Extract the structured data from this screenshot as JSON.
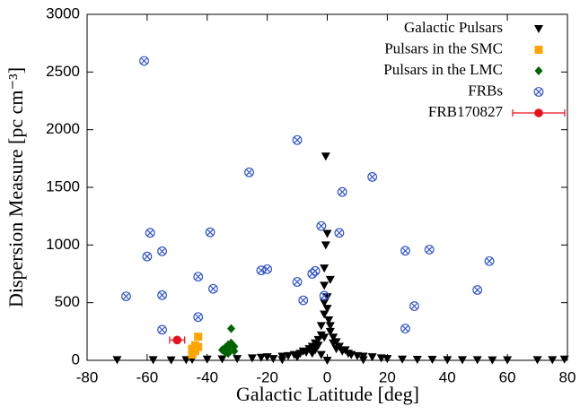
{
  "chart_data": {
    "type": "scatter",
    "x_label": "Galactic Latitude [deg]",
    "y_label": "Dispersion Measure [pc cm⁻³]",
    "xlim": [
      -80,
      80
    ],
    "ylim": [
      0,
      3000
    ],
    "xticks": [
      -80,
      -60,
      -40,
      -20,
      0,
      20,
      40,
      60,
      80
    ],
    "yticks": [
      0,
      500,
      1000,
      1500,
      2000,
      2500,
      3000
    ],
    "legend": "upper right",
    "series": [
      {
        "name": "Galactic Pulsars",
        "color": "#000000",
        "marker": "triangle-down",
        "x": [
          -70,
          -58,
          -52,
          -47,
          -45,
          -40,
          -35,
          -30,
          -25,
          -22,
          -20,
          -18,
          -15,
          -13,
          -11,
          -10,
          -9,
          -8,
          -7,
          -6,
          -5,
          -5,
          -4,
          -4,
          -3,
          -3,
          -2,
          -2,
          -1,
          -1,
          -1,
          -1,
          -0.5,
          0,
          -0.5,
          0,
          0,
          0.5,
          1,
          1,
          2,
          2,
          3,
          3,
          4,
          5,
          6,
          7,
          8,
          10,
          12,
          15,
          18,
          20,
          25,
          30,
          35,
          40,
          45,
          50,
          55,
          60,
          70,
          75,
          79,
          -1,
          1,
          -2,
          0,
          -15,
          12
        ],
        "y": [
          5,
          5,
          3,
          5,
          8,
          10,
          12,
          15,
          20,
          25,
          30,
          15,
          35,
          40,
          50,
          30,
          60,
          80,
          70,
          100,
          120,
          60,
          150,
          90,
          180,
          130,
          220,
          300,
          400,
          500,
          650,
          800,
          1000,
          1100,
          1770,
          550,
          450,
          350,
          250,
          300,
          200,
          150,
          160,
          100,
          120,
          80,
          90,
          60,
          50,
          40,
          35,
          30,
          20,
          15,
          10,
          8,
          8,
          5,
          5,
          5,
          3,
          4,
          5,
          5,
          10,
          200,
          700,
          50,
          0,
          5,
          5
        ]
      },
      {
        "name": "Pulsars in the SMC",
        "color": "#ffa500",
        "marker": "square",
        "x": [
          -45,
          -45,
          -44,
          -44,
          -43,
          -43,
          -44,
          -45
        ],
        "y": [
          70,
          100,
          130,
          95,
          205,
          115,
          80,
          50
        ]
      },
      {
        "name": "Pulsars in the LMC",
        "color": "#006400",
        "marker": "diamond",
        "x": [
          -35,
          -34,
          -33,
          -32,
          -33,
          -31,
          -32,
          -34,
          -31,
          -33
        ],
        "y": [
          90,
          110,
          135,
          150,
          100,
          120,
          275,
          70,
          80,
          60
        ]
      },
      {
        "name": "FRBs",
        "color": "#3355cc",
        "marker": "circle-x",
        "x": [
          -61,
          -59,
          -60,
          -55,
          -67,
          -55,
          -55,
          -43,
          -43,
          -39,
          -38,
          -26,
          -22,
          -20,
          -10,
          -10,
          -8,
          -5,
          -4,
          -2,
          -1,
          4,
          5,
          15,
          26,
          34,
          26,
          29,
          50,
          54
        ],
        "y": [
          2596,
          1105,
          900,
          945,
          555,
          565,
          265,
          725,
          375,
          1110,
          620,
          1630,
          780,
          790,
          1910,
          680,
          520,
          750,
          775,
          1165,
          560,
          1105,
          1460,
          1590,
          950,
          960,
          275,
          470,
          610,
          860
        ]
      },
      {
        "name": "FRB170827",
        "color": "#e8101a",
        "marker": "circle",
        "x": [
          -50
        ],
        "y": [
          176
        ],
        "xerr": [
          2.5
        ]
      }
    ]
  }
}
